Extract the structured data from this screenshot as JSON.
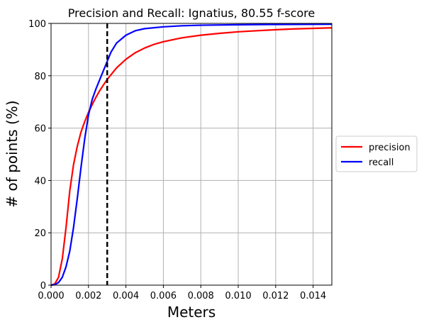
{
  "chart_data": {
    "type": "line",
    "title": "Precision and Recall: Ignatius, 80.55 f-score",
    "xlabel": "Meters",
    "ylabel": "# of points (%)",
    "xlim": [
      0,
      0.015
    ],
    "ylim": [
      0,
      100
    ],
    "x_ticks": [
      "0.000",
      "0.002",
      "0.004",
      "0.006",
      "0.008",
      "0.010",
      "0.012",
      "0.014"
    ],
    "x_tick_values": [
      0,
      0.002,
      0.004,
      0.006,
      0.008,
      0.01,
      0.012,
      0.014
    ],
    "y_ticks": [
      "0",
      "20",
      "40",
      "60",
      "80",
      "100"
    ],
    "y_tick_values": [
      0,
      20,
      40,
      60,
      80,
      100
    ],
    "grid": true,
    "legend_position": "right-outside",
    "threshold": {
      "x": 0.003,
      "style": "dashed",
      "color": "#000000"
    },
    "series": [
      {
        "name": "precision",
        "color": "#ff0000",
        "points": [
          [
            0,
            0
          ],
          [
            0.0002,
            0.5
          ],
          [
            0.0004,
            3
          ],
          [
            0.0006,
            10
          ],
          [
            0.0008,
            22
          ],
          [
            0.001,
            36
          ],
          [
            0.0012,
            46
          ],
          [
            0.0014,
            53
          ],
          [
            0.0016,
            58.5
          ],
          [
            0.0018,
            62.5
          ],
          [
            0.002,
            66
          ],
          [
            0.0022,
            69
          ],
          [
            0.0024,
            71.8
          ],
          [
            0.0026,
            74.3
          ],
          [
            0.0028,
            76.5
          ],
          [
            0.003,
            78.6
          ],
          [
            0.0035,
            83
          ],
          [
            0.004,
            86.3
          ],
          [
            0.0045,
            88.8
          ],
          [
            0.005,
            90.6
          ],
          [
            0.0055,
            92
          ],
          [
            0.006,
            93
          ],
          [
            0.007,
            94.5
          ],
          [
            0.008,
            95.5
          ],
          [
            0.009,
            96.2
          ],
          [
            0.01,
            96.8
          ],
          [
            0.011,
            97.2
          ],
          [
            0.012,
            97.6
          ],
          [
            0.013,
            97.9
          ],
          [
            0.014,
            98.1
          ],
          [
            0.015,
            98.3
          ]
        ]
      },
      {
        "name": "recall",
        "color": "#0000ff",
        "points": [
          [
            0,
            0
          ],
          [
            0.0002,
            0.2
          ],
          [
            0.0004,
            1
          ],
          [
            0.0006,
            3
          ],
          [
            0.0008,
            7
          ],
          [
            0.001,
            13
          ],
          [
            0.0012,
            22
          ],
          [
            0.0014,
            33
          ],
          [
            0.0016,
            45
          ],
          [
            0.0018,
            56
          ],
          [
            0.002,
            65
          ],
          [
            0.0022,
            71
          ],
          [
            0.0024,
            75
          ],
          [
            0.0026,
            78.5
          ],
          [
            0.0028,
            82
          ],
          [
            0.003,
            85.5
          ],
          [
            0.0032,
            89
          ],
          [
            0.0035,
            92.5
          ],
          [
            0.004,
            95.5
          ],
          [
            0.0045,
            97.2
          ],
          [
            0.005,
            98
          ],
          [
            0.006,
            98.7
          ],
          [
            0.007,
            99.1
          ],
          [
            0.008,
            99.3
          ],
          [
            0.01,
            99.5
          ],
          [
            0.012,
            99.6
          ],
          [
            0.015,
            99.7
          ]
        ]
      }
    ]
  }
}
